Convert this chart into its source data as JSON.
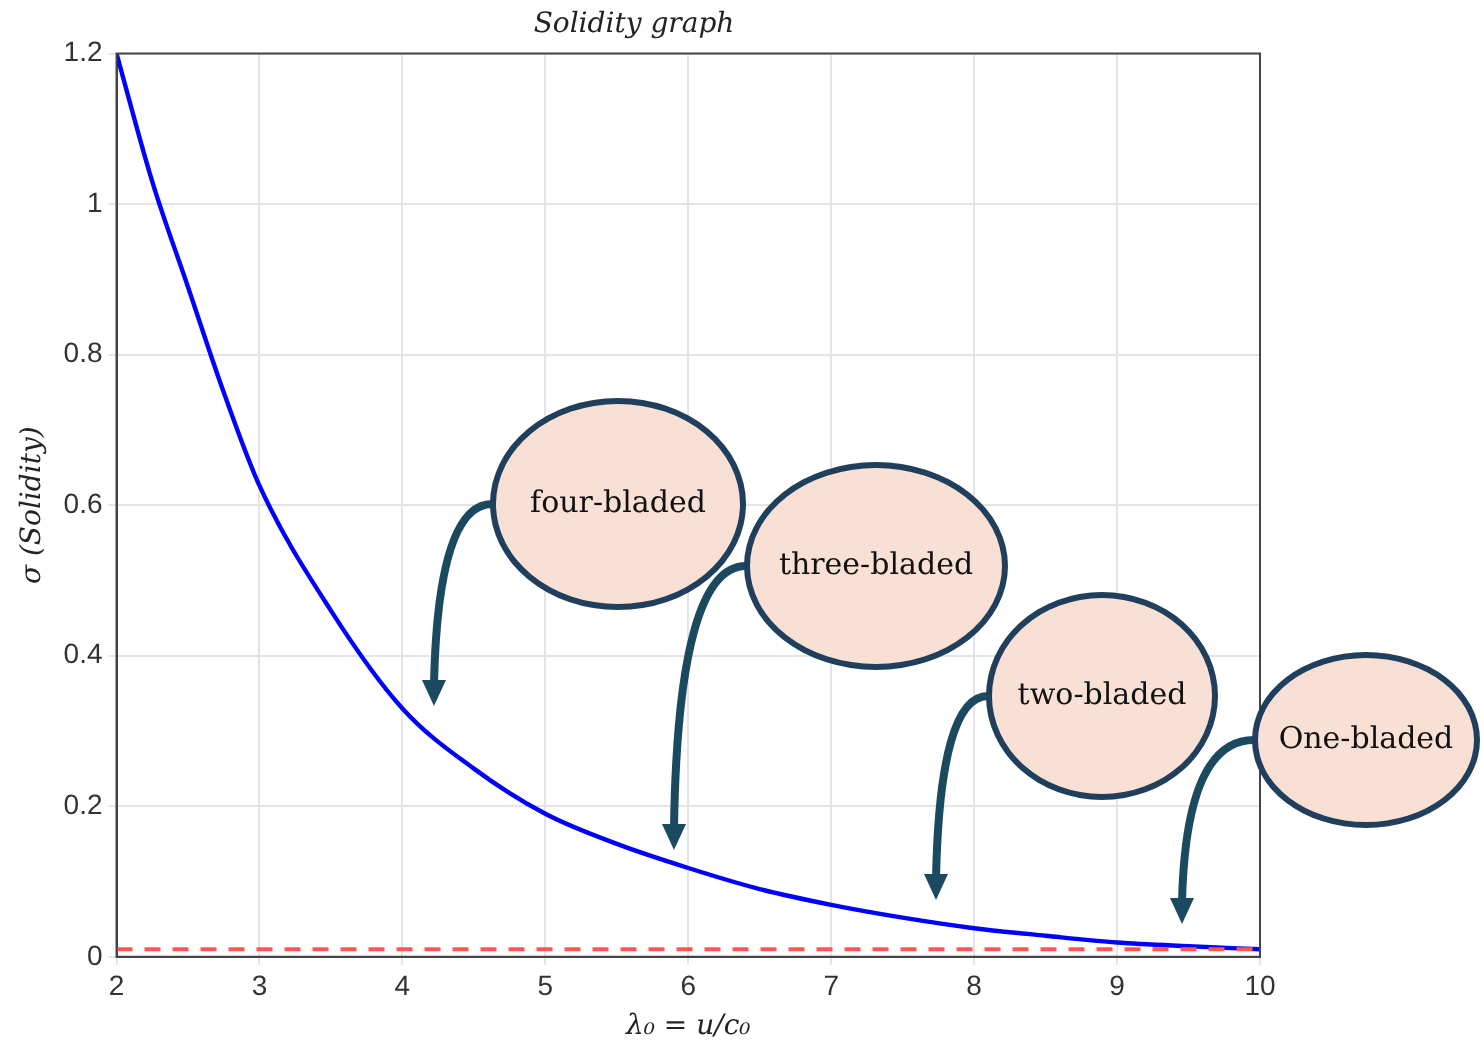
{
  "chart_data": {
    "type": "line",
    "title": "Solidity graph",
    "xlabel": "λ₀ = u/c₀",
    "ylabel": "σ (Solidity)",
    "x": [
      2,
      2.25,
      2.5,
      2.75,
      3,
      3.5,
      4,
      4.5,
      5,
      5.5,
      6,
      6.5,
      7,
      7.5,
      8,
      8.5,
      9,
      9.5,
      10
    ],
    "series": [
      {
        "color": "#0000ff",
        "values": [
          1.2,
          1.03,
          0.89,
          0.75,
          0.626,
          0.46,
          0.33,
          0.25,
          0.19,
          0.15,
          0.118,
          0.09,
          0.069,
          0.052,
          0.038,
          0.028,
          0.019,
          0.014,
          0.01
        ]
      }
    ],
    "xlim": [
      2,
      10
    ],
    "xticks": [
      2,
      3,
      4,
      5,
      6,
      7,
      8,
      9,
      10
    ],
    "ylim": [
      0,
      1.2
    ],
    "yticks": [
      0,
      0.2,
      0.4,
      0.6,
      0.8,
      1,
      1.2
    ],
    "grid": true,
    "legend": false,
    "marker": "none",
    "line_style": "solid",
    "ref_lines": [
      {
        "axis": "y",
        "value": 0.01,
        "color": "#ff5555",
        "line_style": "dashed"
      }
    ],
    "annotations": [
      "four-bladed",
      "three-bladed",
      "two-bladed",
      "One-bladed"
    ]
  }
}
